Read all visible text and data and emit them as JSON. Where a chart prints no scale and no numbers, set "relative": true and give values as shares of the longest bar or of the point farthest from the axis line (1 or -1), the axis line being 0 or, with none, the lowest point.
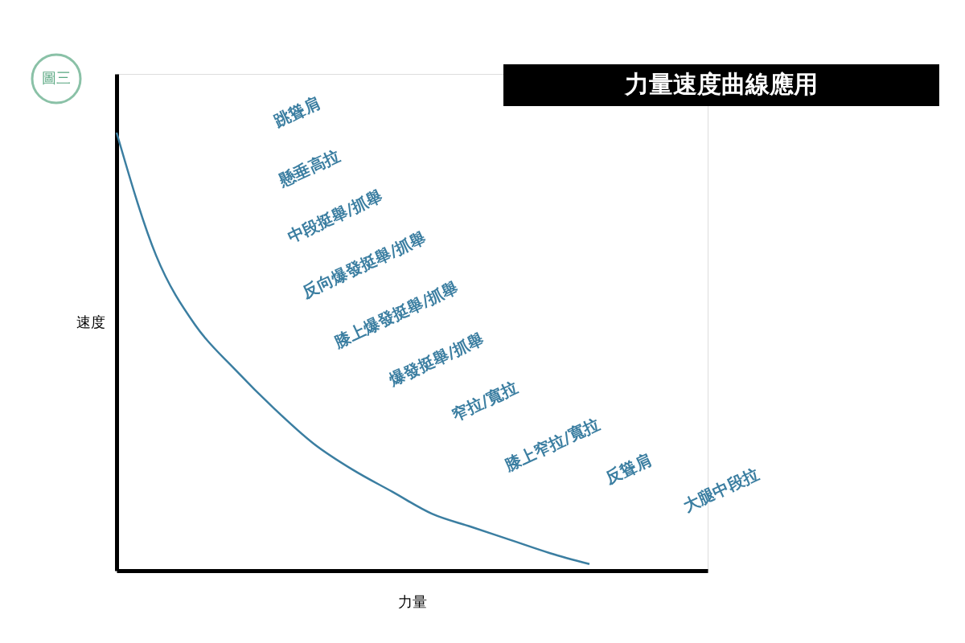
{
  "chart_data": {
    "type": "line",
    "title": "力量速度曲線應用",
    "xlabel": "力量",
    "ylabel": "速度",
    "relative": true,
    "categories": [
      null,
      null,
      null,
      null,
      null,
      null,
      null,
      null,
      null,
      null,
      null,
      null,
      null,
      null,
      null,
      null
    ],
    "series": [
      {
        "color": "#3b7ea1",
        "values": [
          1.0,
          0.72,
          0.56,
          0.46,
          0.37,
          0.29,
          0.23,
          0.18,
          0.13,
          0.1,
          0.07,
          0.04,
          0.015,
          null,
          null,
          null
        ]
      }
    ],
    "annotations": [
      "圖三",
      "跳聳肩",
      "懸垂高拉",
      "中段挺舉/抓舉",
      "反向爆發挺舉/抓舉",
      "膝上爆發挺舉/抓舉",
      "爆發挺舉/抓舉",
      "窄拉/寬拉",
      "膝上窄拉/寬拉",
      "反聳肩",
      "大腿中段拉"
    ],
    "grid": false,
    "marker": "none",
    "line_style": "solid"
  }
}
